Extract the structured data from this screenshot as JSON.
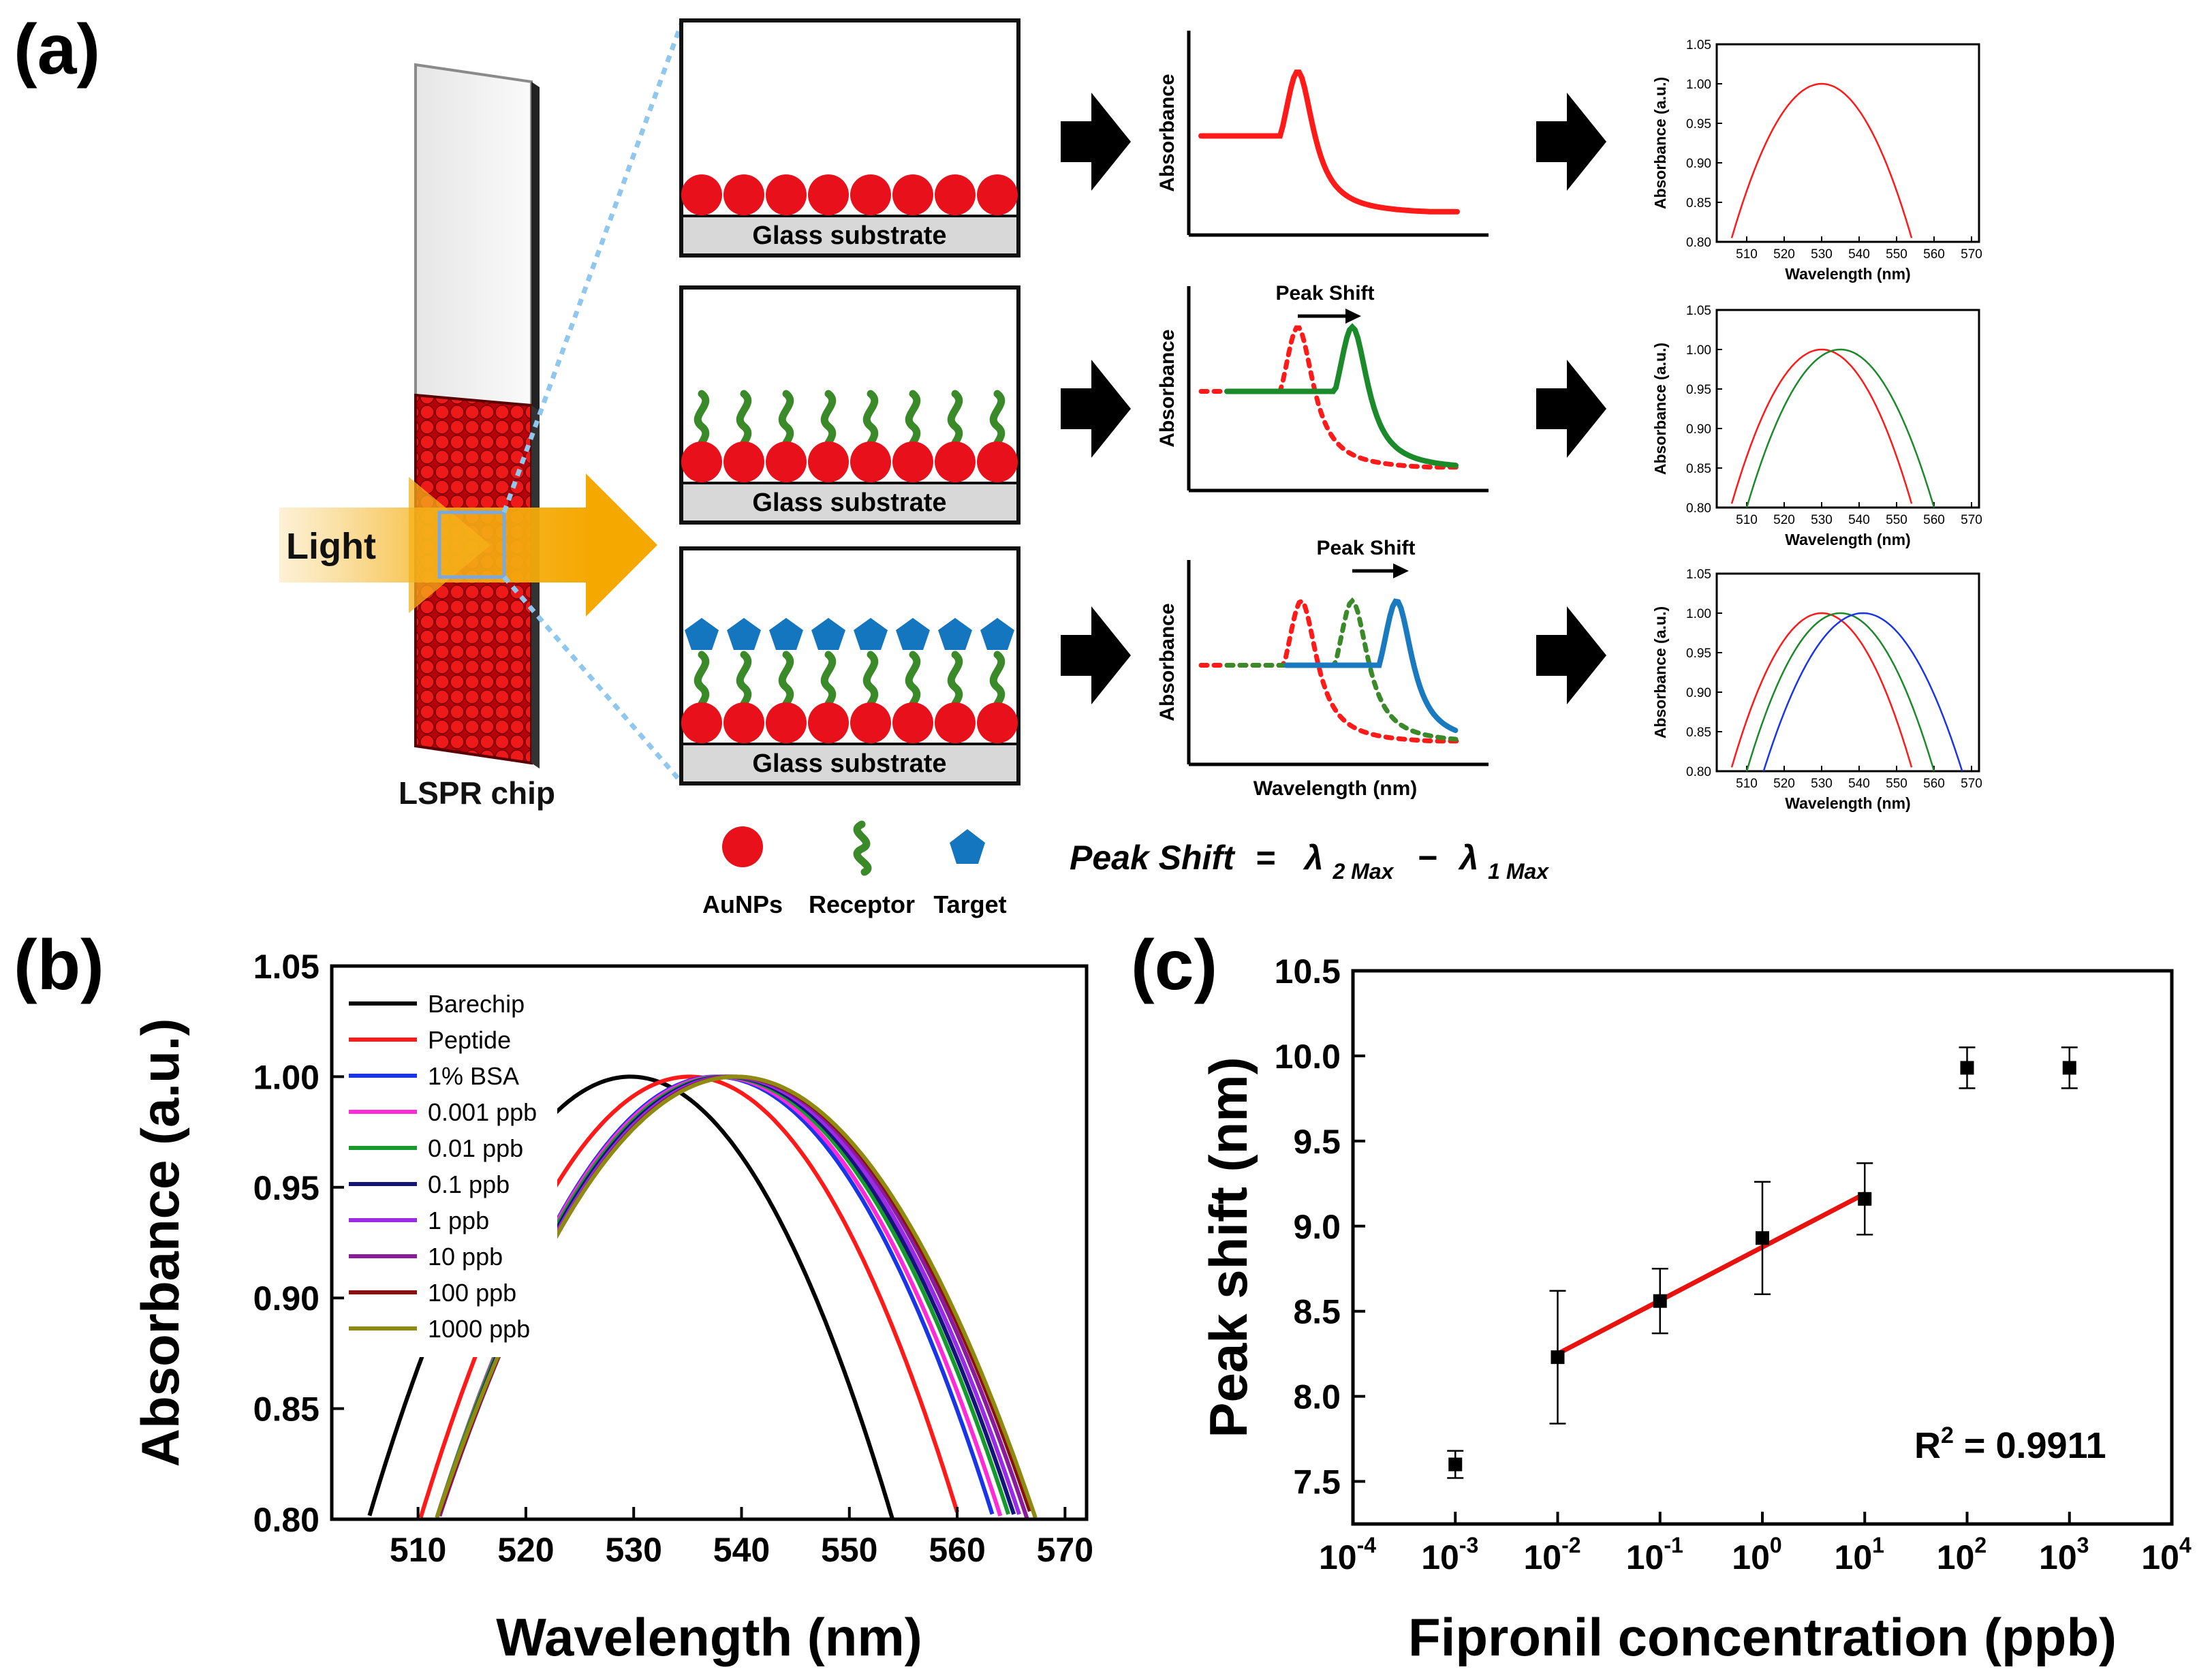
{
  "panel_labels": {
    "a": "(a)",
    "b": "(b)",
    "c": "(c)"
  },
  "schematic": {
    "light_label": "Light",
    "chip_label": "LSPR chip",
    "substrate_label": "Glass substrate",
    "mini_absorbance_label": "Absorbance",
    "mini_wavelength_label": "Wavelength (nm)",
    "peak_shift_label": "Peak Shift",
    "legend": {
      "aunp": "AuNPs",
      "receptor": "Receptor",
      "target": "Target"
    },
    "equation": {
      "lhs": "Peak Shift",
      "eq": "=",
      "lambda": "λ",
      "sub2": "2 Max",
      "minus": "−",
      "sub1": "1 Max"
    },
    "colors": {
      "aunp": "#e8101a",
      "receptor": "#3a8a2a",
      "target": "#1576c0",
      "glass": "#d8d8d8",
      "light": "#f5b21a"
    }
  },
  "small_plots": {
    "ylabel": "Absorbance (a.u.)",
    "xlabel": "Wavelength (nm)",
    "yticks": [
      "0.80",
      "0.85",
      "0.90",
      "0.95",
      "1.00",
      "1.05"
    ],
    "xticks": [
      "510",
      "520",
      "530",
      "540",
      "550",
      "560",
      "570"
    ]
  },
  "colors": {
    "black": "#000000",
    "red": "#ff1a1a",
    "green": "#1a8a2a",
    "blue": "#1a35e8",
    "fit": "#e8120f"
  },
  "chart_data": [
    {
      "id": "b",
      "type": "line",
      "title": "",
      "xlabel": "Wavelength (nm)",
      "ylabel": "Absorbance (a.u.)",
      "xlim": [
        502,
        572
      ],
      "ylim": [
        0.8,
        1.05
      ],
      "xticks": [
        510,
        520,
        530,
        540,
        550,
        560,
        570
      ],
      "yticks": [
        0.8,
        0.85,
        0.9,
        0.95,
        1.0,
        1.05
      ],
      "legend_position": "top-left",
      "series": [
        {
          "name": "Barechip",
          "color": "#000000",
          "peak": 529.7,
          "halfwidth": 24.3
        },
        {
          "name": "Peptide",
          "color": "#ff1a1a",
          "peak": 535.2,
          "halfwidth": 25.0
        },
        {
          "name": "1% BSA",
          "color": "#1a35e8",
          "peak": 537.6,
          "halfwidth": 25.8
        },
        {
          "name": "0.001 ppb",
          "color": "#ff2bd6",
          "peak": 537.9,
          "halfwidth": 26.2
        },
        {
          "name": "0.01 ppb",
          "color": "#169a2e",
          "peak": 538.3,
          "halfwidth": 26.6
        },
        {
          "name": "0.1 ppb",
          "color": "#14147a",
          "peak": 538.6,
          "halfwidth": 26.8
        },
        {
          "name": "1 ppb",
          "color": "#9a2be6",
          "peak": 538.9,
          "halfwidth": 27.0
        },
        {
          "name": "10 ppb",
          "color": "#8a1b9a",
          "peak": 539.2,
          "halfwidth": 27.3
        },
        {
          "name": "100 ppb",
          "color": "#8a0f0f",
          "peak": 539.4,
          "halfwidth": 27.6
        },
        {
          "name": "1000 ppb",
          "color": "#8f8a10",
          "peak": 539.5,
          "halfwidth": 27.8
        }
      ]
    },
    {
      "id": "c",
      "type": "scatter",
      "title": "",
      "xlabel": "Fipronil concentration (ppb)",
      "ylabel": "Peak shift (nm)",
      "xscale": "log",
      "xlim_exp": [
        -4,
        4
      ],
      "ylim": [
        7.25,
        10.5
      ],
      "yticks": [
        7.5,
        8.0,
        8.5,
        9.0,
        9.5,
        10.0,
        10.5
      ],
      "xtick_exponents": [
        "-4",
        "-3",
        "-2",
        "-1",
        "0",
        "1",
        "2",
        "3",
        "4"
      ],
      "points": [
        {
          "x_exp": -3,
          "y": 7.6,
          "err": 0.08
        },
        {
          "x_exp": -2,
          "y": 8.23,
          "err": 0.39
        },
        {
          "x_exp": -1,
          "y": 8.56,
          "err": 0.19
        },
        {
          "x_exp": 0,
          "y": 8.93,
          "err": 0.33
        },
        {
          "x_exp": 1,
          "y": 9.16,
          "err": 0.21
        },
        {
          "x_exp": 2,
          "y": 9.93,
          "err": 0.12
        },
        {
          "x_exp": 3,
          "y": 9.93,
          "err": 0.12
        }
      ],
      "fit": {
        "x_exp": [
          -2,
          1
        ],
        "y": [
          8.25,
          9.19
        ]
      },
      "annotation": {
        "r2_prefix": "R",
        "r2_sup": "2",
        "r2_value": " = 0.9911"
      }
    }
  ]
}
